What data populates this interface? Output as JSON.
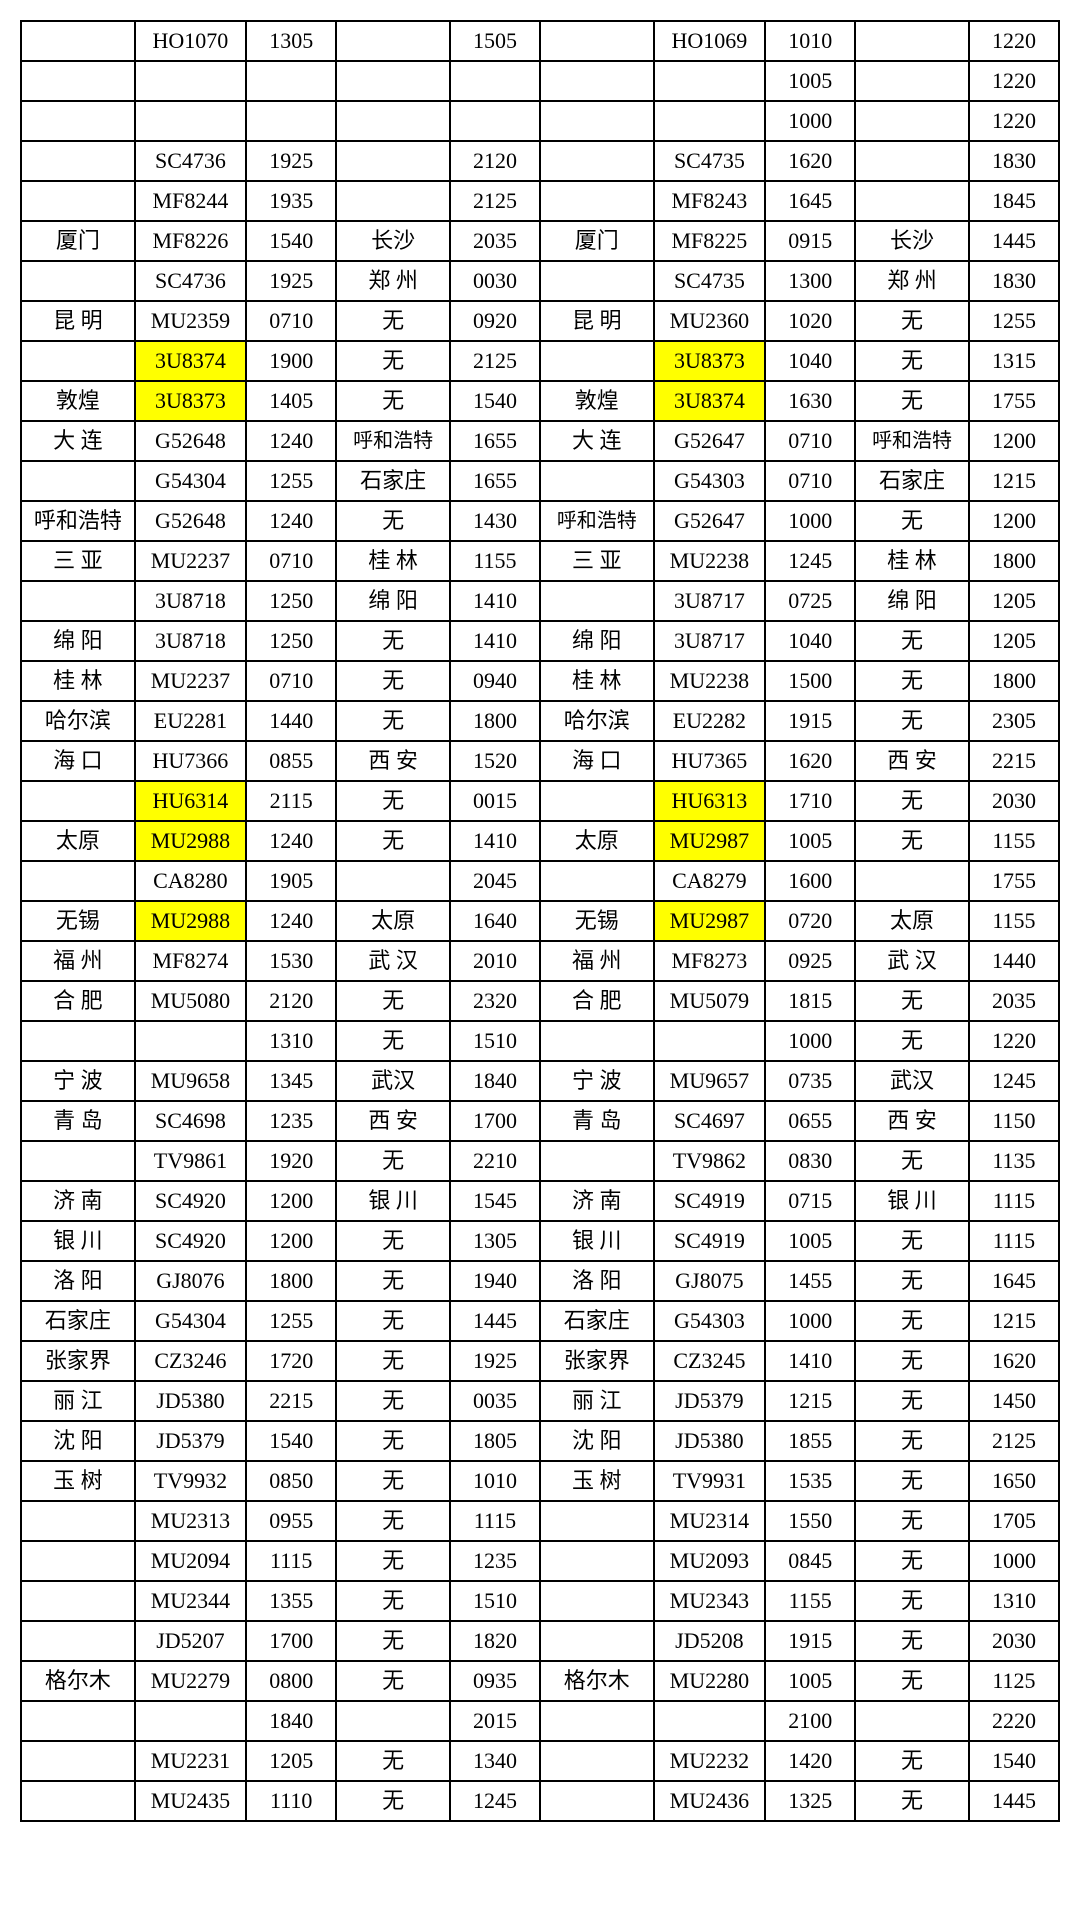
{
  "table": {
    "highlight_color": "#ffff00",
    "border_color": "#000000",
    "background_color": "#ffffff",
    "font_family": "SimSun",
    "cell_fontsize": 22,
    "columns": 10,
    "col_widths_pct": [
      10.6,
      10.4,
      8.4,
      10.6,
      8.4,
      10.6,
      10.4,
      8.4,
      10.6,
      8.4
    ],
    "rows": [
      {
        "cells": [
          "",
          "HO1070",
          "1305",
          "",
          "1505",
          "",
          "HO1069",
          "1010",
          "",
          "1220"
        ],
        "hl": []
      },
      {
        "cells": [
          "",
          "",
          "",
          "",
          "",
          "",
          "",
          "1005",
          "",
          "1220"
        ],
        "hl": []
      },
      {
        "cells": [
          "",
          "",
          "",
          "",
          "",
          "",
          "",
          "1000",
          "",
          "1220"
        ],
        "hl": []
      },
      {
        "cells": [
          "",
          "SC4736",
          "1925",
          "",
          "2120",
          "",
          "SC4735",
          "1620",
          "",
          "1830"
        ],
        "hl": []
      },
      {
        "cells": [
          "",
          "MF8244",
          "1935",
          "",
          "2125",
          "",
          "MF8243",
          "1645",
          "",
          "1845"
        ],
        "hl": []
      },
      {
        "cells": [
          "厦门",
          "MF8226",
          "1540",
          "长沙",
          "2035",
          "厦门",
          "MF8225",
          "0915",
          "长沙",
          "1445"
        ],
        "hl": []
      },
      {
        "cells": [
          "",
          "SC4736",
          "1925",
          "郑 州",
          "0030",
          "",
          "SC4735",
          "1300",
          "郑 州",
          "1830"
        ],
        "hl": []
      },
      {
        "cells": [
          "昆 明",
          "MU2359",
          "0710",
          "无",
          "0920",
          "昆 明",
          "MU2360",
          "1020",
          "无",
          "1255"
        ],
        "hl": []
      },
      {
        "cells": [
          "",
          "3U8374",
          "1900",
          "无",
          "2125",
          "",
          "3U8373",
          "1040",
          "无",
          "1315"
        ],
        "hl": [
          1,
          6
        ]
      },
      {
        "cells": [
          "敦煌",
          "3U8373",
          "1405",
          "无",
          "1540",
          "敦煌",
          "3U8374",
          "1630",
          "无",
          "1755"
        ],
        "hl": [
          1,
          6
        ]
      },
      {
        "cells": [
          "大 连",
          "G52648",
          "1240",
          "呼和浩特",
          "1655",
          "大 连",
          "G52647",
          "0710",
          "呼和浩特",
          "1200"
        ],
        "hl": [],
        "wrap": [
          3,
          8
        ]
      },
      {
        "cells": [
          "",
          "G54304",
          "1255",
          "石家庄",
          "1655",
          "",
          "G54303",
          "0710",
          "石家庄",
          "1215"
        ],
        "hl": []
      },
      {
        "cells": [
          "呼和浩特",
          "G52648",
          "1240",
          "无",
          "1430",
          "呼和浩特",
          "G52647",
          "1000",
          "无",
          "1200"
        ],
        "hl": [],
        "wrap": [
          5
        ]
      },
      {
        "cells": [
          "三 亚",
          "MU2237",
          "0710",
          "桂 林",
          "1155",
          "三 亚",
          "MU2238",
          "1245",
          "桂 林",
          "1800"
        ],
        "hl": []
      },
      {
        "cells": [
          "",
          "3U8718",
          "1250",
          "绵 阳",
          "1410",
          "",
          "3U8717",
          "0725",
          "绵 阳",
          "1205"
        ],
        "hl": []
      },
      {
        "cells": [
          "绵 阳",
          "3U8718",
          "1250",
          "无",
          "1410",
          "绵 阳",
          "3U8717",
          "1040",
          "无",
          "1205"
        ],
        "hl": []
      },
      {
        "cells": [
          "桂 林",
          "MU2237",
          "0710",
          "无",
          "0940",
          "桂 林",
          "MU2238",
          "1500",
          "无",
          "1800"
        ],
        "hl": []
      },
      {
        "cells": [
          "哈尔滨",
          "EU2281",
          "1440",
          "无",
          "1800",
          "哈尔滨",
          "EU2282",
          "1915",
          "无",
          "2305"
        ],
        "hl": []
      },
      {
        "cells": [
          "海 口",
          "HU7366",
          "0855",
          "西 安",
          "1520",
          "海 口",
          "HU7365",
          "1620",
          "西 安",
          "2215"
        ],
        "hl": []
      },
      {
        "cells": [
          "",
          "HU6314",
          "2115",
          "无",
          "0015",
          "",
          "HU6313",
          "1710",
          "无",
          "2030"
        ],
        "hl": [
          1,
          6
        ]
      },
      {
        "cells": [
          "太原",
          "MU2988",
          "1240",
          "无",
          "1410",
          "太原",
          "MU2987",
          "1005",
          "无",
          "1155"
        ],
        "hl": [
          1,
          6
        ]
      },
      {
        "cells": [
          "",
          "CA8280",
          "1905",
          "",
          "2045",
          "",
          "CA8279",
          "1600",
          "",
          "1755"
        ],
        "hl": []
      },
      {
        "cells": [
          "无锡",
          "MU2988",
          "1240",
          "太原",
          "1640",
          "无锡",
          "MU2987",
          "0720",
          "太原",
          "1155"
        ],
        "hl": [
          1,
          6
        ]
      },
      {
        "cells": [
          "福 州",
          "MF8274",
          "1530",
          "武 汉",
          "2010",
          "福 州",
          "MF8273",
          "0925",
          "武 汉",
          "1440"
        ],
        "hl": []
      },
      {
        "cells": [
          "合 肥",
          "MU5080",
          "2120",
          "无",
          "2320",
          "合 肥",
          "MU5079",
          "1815",
          "无",
          "2035"
        ],
        "hl": []
      },
      {
        "cells": [
          "",
          "",
          "1310",
          "无",
          "1510",
          "",
          "",
          "1000",
          "无",
          "1220"
        ],
        "hl": []
      },
      {
        "cells": [
          "宁 波",
          "MU9658",
          "1345",
          "武汉",
          "1840",
          "宁 波",
          "MU9657",
          "0735",
          "武汉",
          "1245"
        ],
        "hl": []
      },
      {
        "cells": [
          "青 岛",
          "SC4698",
          "1235",
          "西 安",
          "1700",
          "青 岛",
          "SC4697",
          "0655",
          "西 安",
          "1150"
        ],
        "hl": []
      },
      {
        "cells": [
          "",
          "TV9861",
          "1920",
          "无",
          "2210",
          "",
          "TV9862",
          "0830",
          "无",
          "1135"
        ],
        "hl": []
      },
      {
        "cells": [
          "济 南",
          "SC4920",
          "1200",
          "银 川",
          "1545",
          "济 南",
          "SC4919",
          "0715",
          "银 川",
          "1115"
        ],
        "hl": []
      },
      {
        "cells": [
          "银 川",
          "SC4920",
          "1200",
          "无",
          "1305",
          "银 川",
          "SC4919",
          "1005",
          "无",
          "1115"
        ],
        "hl": []
      },
      {
        "cells": [
          "洛 阳",
          "GJ8076",
          "1800",
          "无",
          "1940",
          "洛 阳",
          "GJ8075",
          "1455",
          "无",
          "1645"
        ],
        "hl": []
      },
      {
        "cells": [
          "石家庄",
          "G54304",
          "1255",
          "无",
          "1445",
          "石家庄",
          "G54303",
          "1000",
          "无",
          "1215"
        ],
        "hl": []
      },
      {
        "cells": [
          "张家界",
          "CZ3246",
          "1720",
          "无",
          "1925",
          "张家界",
          "CZ3245",
          "1410",
          "无",
          "1620"
        ],
        "hl": []
      },
      {
        "cells": [
          "丽 江",
          "JD5380",
          "2215",
          "无",
          "0035",
          "丽 江",
          "JD5379",
          "1215",
          "无",
          "1450"
        ],
        "hl": []
      },
      {
        "cells": [
          "沈 阳",
          "JD5379",
          "1540",
          "无",
          "1805",
          "沈 阳",
          "JD5380",
          "1855",
          "无",
          "2125"
        ],
        "hl": []
      },
      {
        "cells": [
          "玉 树",
          "TV9932",
          "0850",
          "无",
          "1010",
          "玉 树",
          "TV9931",
          "1535",
          "无",
          "1650"
        ],
        "hl": []
      },
      {
        "cells": [
          "",
          "MU2313",
          "0955",
          "无",
          "1115",
          "",
          "MU2314",
          "1550",
          "无",
          "1705"
        ],
        "hl": []
      },
      {
        "cells": [
          "",
          "MU2094",
          "1115",
          "无",
          "1235",
          "",
          "MU2093",
          "0845",
          "无",
          "1000"
        ],
        "hl": []
      },
      {
        "cells": [
          "",
          "MU2344",
          "1355",
          "无",
          "1510",
          "",
          "MU2343",
          "1155",
          "无",
          "1310"
        ],
        "hl": []
      },
      {
        "cells": [
          "",
          "JD5207",
          "1700",
          "无",
          "1820",
          "",
          "JD5208",
          "1915",
          "无",
          "2030"
        ],
        "hl": []
      },
      {
        "cells": [
          "格尔木",
          "MU2279",
          "0800",
          "无",
          "0935",
          "格尔木",
          "MU2280",
          "1005",
          "无",
          "1125"
        ],
        "hl": []
      },
      {
        "cells": [
          "",
          "",
          "1840",
          "",
          "2015",
          "",
          "",
          "2100",
          "",
          "2220"
        ],
        "hl": []
      },
      {
        "cells": [
          "",
          "MU2231",
          "1205",
          "无",
          "1340",
          "",
          "MU2232",
          "1420",
          "无",
          "1540"
        ],
        "hl": []
      },
      {
        "cells": [
          "",
          "MU2435",
          "1110",
          "无",
          "1245",
          "",
          "MU2436",
          "1325",
          "无",
          "1445"
        ],
        "hl": []
      }
    ]
  }
}
